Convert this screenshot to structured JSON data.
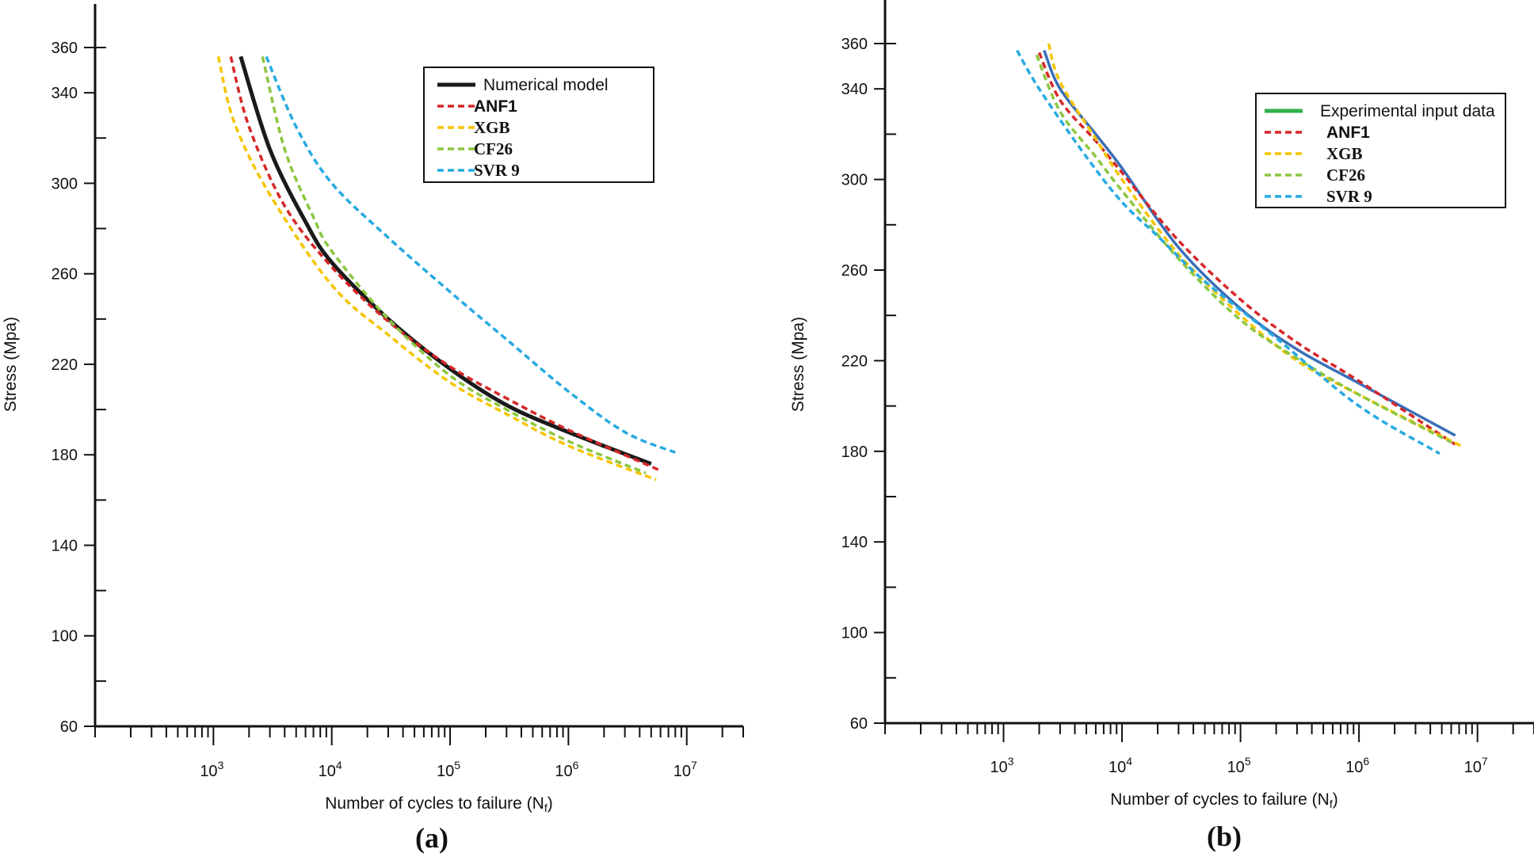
{
  "chart_data": [
    {
      "type": "line",
      "panel_label": "(a)",
      "xlabel": "Number of cycles to failure (N",
      "xlabel_sub": "f",
      "ylabel": "Stress (Mpa)",
      "x_scale": "log",
      "xlim": [
        100,
        30000000
      ],
      "ylim": [
        60,
        380
      ],
      "y_ticks": [
        60,
        100,
        140,
        180,
        220,
        260,
        300,
        340,
        360
      ],
      "x_major_ticks": [
        1000,
        10000,
        100000,
        1000000,
        10000000
      ],
      "x_major_tick_labels": [
        {
          "base": "10",
          "exp": "3"
        },
        {
          "base": "10",
          "exp": "4"
        },
        {
          "base": "10",
          "exp": "5"
        },
        {
          "base": "10",
          "exp": "6"
        },
        {
          "base": "10",
          "exp": "7"
        }
      ],
      "grid": false,
      "legend_position": "top-right",
      "series": [
        {
          "name": "Numerical model",
          "color": "#1a1a1a",
          "dash": "solid",
          "width": 5,
          "legend_font": "sans",
          "x": [
            1700,
            3000,
            6000,
            10000,
            30000,
            100000,
            300000,
            1000000,
            5000000
          ],
          "y": [
            356,
            315,
            283,
            265,
            240,
            218,
            202,
            190,
            176
          ]
        },
        {
          "name": "ANF1",
          "color": "#d62728",
          "dash": "dashed",
          "width": 3.5,
          "legend_font": "sans-bold",
          "x": [
            1400,
            2000,
            4000,
            10000,
            30000,
            100000,
            300000,
            1000000,
            6000000
          ],
          "y": [
            356,
            325,
            290,
            263,
            239,
            219,
            205,
            191,
            173
          ]
        },
        {
          "name": "XGB",
          "color": "#f5c400",
          "dash": "dashed",
          "width": 3.5,
          "legend_font": "serif",
          "x": [
            1100,
            1500,
            3000,
            10000,
            30000,
            100000,
            300000,
            1000000,
            5500000
          ],
          "y": [
            356,
            327,
            295,
            255,
            233,
            212,
            198,
            184,
            169
          ]
        },
        {
          "name": "CF26",
          "color": "#8cc63f",
          "dash": "dashed",
          "width": 3.5,
          "legend_font": "serif",
          "x": [
            2600,
            4000,
            7000,
            10000,
            30000,
            100000,
            300000,
            1000000,
            4500000
          ],
          "y": [
            356,
            315,
            285,
            270,
            240,
            215,
            200,
            186,
            172
          ]
        },
        {
          "name": "SVR 9",
          "color": "#27aae1",
          "dash": "dashed",
          "width": 3.5,
          "legend_font": "serif",
          "x": [
            2800,
            5000,
            10000,
            30000,
            100000,
            300000,
            1000000,
            3000000,
            8000000
          ],
          "y": [
            356,
            325,
            300,
            276,
            252,
            231,
            208,
            190,
            181
          ]
        }
      ]
    },
    {
      "type": "line",
      "panel_label": "(b)",
      "xlabel": "Number of cycles to failure (N",
      "xlabel_sub": "f",
      "ylabel": "Stress (Mpa)",
      "x_scale": "log",
      "xlim": [
        100,
        30000000
      ],
      "ylim": [
        60,
        380
      ],
      "y_ticks": [
        60,
        100,
        140,
        180,
        220,
        260,
        300,
        340,
        360
      ],
      "x_major_ticks": [
        1000,
        10000,
        100000,
        1000000,
        10000000
      ],
      "x_major_tick_labels": [
        {
          "base": "10",
          "exp": "3"
        },
        {
          "base": "10",
          "exp": "4"
        },
        {
          "base": "10",
          "exp": "5"
        },
        {
          "base": "10",
          "exp": "6"
        },
        {
          "base": "10",
          "exp": "7"
        }
      ],
      "grid": false,
      "legend_position": "top-right",
      "series": [
        {
          "name": "Experimental input data",
          "color": "#3a6fb8",
          "legend_color": "#2eb04a",
          "dash": "solid",
          "width": 3.5,
          "legend_font": "sans",
          "x": [
            2200,
            3000,
            6000,
            10000,
            30000,
            100000,
            300000,
            1000000,
            6500000
          ],
          "y": [
            357,
            340,
            320,
            305,
            270,
            243,
            225,
            210,
            187
          ]
        },
        {
          "name": "ANF1",
          "color": "#d62728",
          "dash": "dashed",
          "width": 3.5,
          "legend_font": "sans-bold",
          "x": [
            2000,
            3000,
            6000,
            10000,
            30000,
            100000,
            300000,
            1000000,
            6500000
          ],
          "y": [
            356,
            335,
            317,
            303,
            273,
            247,
            228,
            211,
            183
          ]
        },
        {
          "name": "XGB",
          "color": "#f5c400",
          "dash": "dashed",
          "width": 3.5,
          "legend_font": "serif",
          "x": [
            2400,
            3000,
            6000,
            10000,
            30000,
            100000,
            300000,
            1000000,
            7500000
          ],
          "y": [
            360,
            343,
            318,
            300,
            267,
            240,
            220,
            205,
            182
          ]
        },
        {
          "name": "CF26",
          "color": "#8cc63f",
          "dash": "dashed",
          "width": 3.5,
          "legend_font": "serif",
          "x": [
            1900,
            3000,
            6000,
            10000,
            30000,
            100000,
            300000,
            1000000,
            6000000
          ],
          "y": [
            355,
            330,
            310,
            295,
            265,
            238,
            221,
            205,
            184
          ]
        },
        {
          "name": "SVR 9",
          "color": "#27aae1",
          "dash": "dashed",
          "width": 3.5,
          "legend_font": "serif",
          "x": [
            1300,
            2000,
            5000,
            10000,
            20000,
            50000,
            200000,
            1000000,
            4800000
          ],
          "y": [
            357,
            340,
            310,
            290,
            275,
            255,
            230,
            200,
            179
          ]
        }
      ]
    }
  ]
}
